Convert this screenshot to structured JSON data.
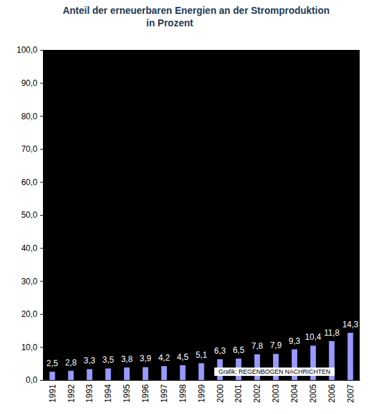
{
  "chart_data": {
    "type": "bar",
    "title": "Anteil der erneuerbaren Energien an der Stromproduktion\nin Prozent",
    "categories": [
      "1991",
      "1992",
      "1993",
      "1994",
      "1995",
      "1996",
      "1997",
      "1998",
      "1999",
      "2000",
      "2001",
      "2002",
      "2003",
      "2004",
      "2005",
      "2006",
      "2007"
    ],
    "values": [
      2.5,
      2.8,
      3.3,
      3.5,
      3.8,
      3.9,
      4.2,
      4.5,
      5.1,
      6.3,
      6.5,
      7.8,
      7.9,
      9.3,
      10.4,
      11.8,
      14.3
    ],
    "value_labels": [
      "2,5",
      "2,8",
      "3,3",
      "3,5",
      "3,8",
      "3,9",
      "4,2",
      "4,5",
      "5,1",
      "6,3",
      "6,5",
      "7,8",
      "7,9",
      "9,3",
      "10,4",
      "11,8",
      "14,3"
    ],
    "color": "#9999ff",
    "ylim": [
      0,
      100
    ],
    "yticks": [
      {
        "value": 0,
        "label": "0,0"
      },
      {
        "value": 10,
        "label": "10,0"
      },
      {
        "value": 20,
        "label": "20,0"
      },
      {
        "value": 30,
        "label": "30,0"
      },
      {
        "value": 40,
        "label": "40,0"
      },
      {
        "value": 50,
        "label": "50,0"
      },
      {
        "value": 60,
        "label": "60,0"
      },
      {
        "value": 70,
        "label": "70,0"
      },
      {
        "value": 80,
        "label": "80,0"
      },
      {
        "value": 90,
        "label": "90,0"
      },
      {
        "value": 100,
        "label": "100,0"
      }
    ],
    "grid": false,
    "data_labels": true,
    "annotation": "Grafik: REGENBOGEN NACHRICHTEN"
  }
}
